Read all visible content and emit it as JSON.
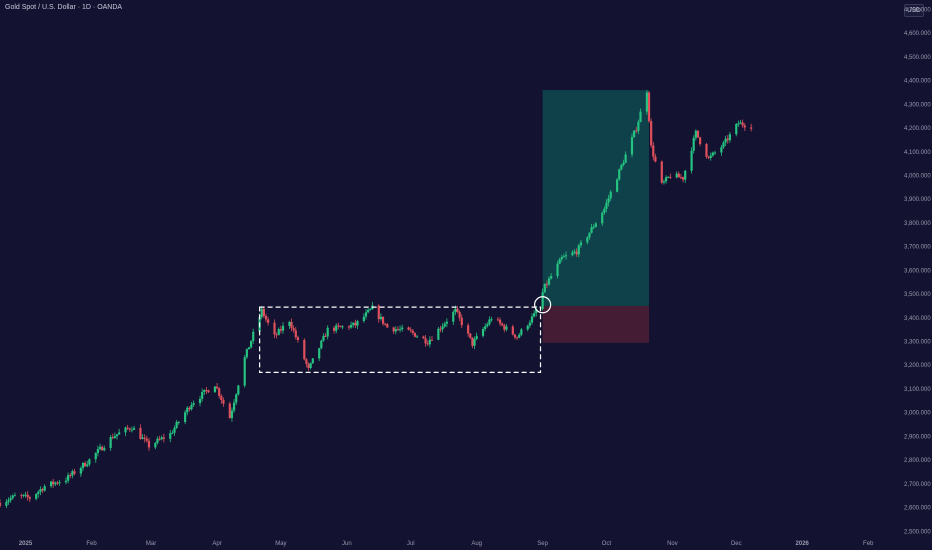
{
  "header": {
    "title": "Gold Spot / U.S. Dollar · 1D · OANDA",
    "currency": "USD"
  },
  "colors": {
    "background": "#131230",
    "up": "#26c281",
    "down": "#e0505c",
    "target_zone": "#0e4a4e",
    "stop_zone": "#4a1e34",
    "box_line": "#ffffff",
    "axis_text": "#9a9ab0"
  },
  "chart_data": {
    "type": "candlestick",
    "title": "Gold Spot / U.S. Dollar · 1D · OANDA",
    "x_ticks": [
      "2025",
      "Feb",
      "Mar",
      "Apr",
      "May",
      "Jun",
      "Jul",
      "Aug",
      "Sep",
      "Oct",
      "Nov",
      "Dec",
      "2026",
      "Feb"
    ],
    "y_ticks": [
      "2,500.000",
      "2,600.000",
      "2,700.000",
      "2,800.000",
      "2,900.000",
      "3,000.000",
      "3,100.000",
      "3,200.000",
      "3,300.000",
      "3,400.000",
      "3,500.000",
      "3,600.000",
      "3,700.000",
      "3,800.000",
      "3,900.000",
      "4,000.000",
      "4,100.000",
      "4,200.000",
      "4,300.000",
      "4,400.000",
      "4,500.000",
      "4,600.000",
      "4,700.000"
    ],
    "ylim": [
      2480,
      4740
    ],
    "xlim": [
      "2024-12-20",
      "2026-02-15"
    ],
    "price_path": [
      [
        "2024-12-20",
        2620
      ],
      [
        "2024-12-28",
        2650
      ],
      [
        "2025-01-03",
        2640
      ],
      [
        "2025-01-10",
        2690
      ],
      [
        "2025-01-20",
        2720
      ],
      [
        "2025-01-31",
        2800
      ],
      [
        "2025-02-11",
        2900
      ],
      [
        "2025-02-20",
        2940
      ],
      [
        "2025-02-28",
        2860
      ],
      [
        "2025-03-10",
        2910
      ],
      [
        "2025-03-20",
        3040
      ],
      [
        "2025-03-31",
        3120
      ],
      [
        "2025-04-07",
        2980
      ],
      [
        "2025-04-14",
        3230
      ],
      [
        "2025-04-22",
        3430
      ],
      [
        "2025-04-28",
        3320
      ],
      [
        "2025-05-05",
        3390
      ],
      [
        "2025-05-14",
        3180
      ],
      [
        "2025-05-23",
        3350
      ],
      [
        "2025-06-05",
        3370
      ],
      [
        "2025-06-13",
        3440
      ],
      [
        "2025-06-20",
        3360
      ],
      [
        "2025-07-01",
        3340
      ],
      [
        "2025-07-09",
        3300
      ],
      [
        "2025-07-22",
        3430
      ],
      [
        "2025-07-30",
        3290
      ],
      [
        "2025-08-08",
        3400
      ],
      [
        "2025-08-20",
        3320
      ],
      [
        "2025-08-28",
        3410
      ],
      [
        "2025-09-02",
        3530
      ],
      [
        "2025-09-10",
        3650
      ],
      [
        "2025-09-17",
        3680
      ],
      [
        "2025-09-23",
        3760
      ],
      [
        "2025-09-30",
        3860
      ],
      [
        "2025-10-08",
        4040
      ],
      [
        "2025-10-15",
        4200
      ],
      [
        "2025-10-20",
        4360
      ],
      [
        "2025-10-22",
        4120
      ],
      [
        "2025-10-27",
        3960
      ],
      [
        "2025-10-31",
        4000
      ],
      [
        "2025-11-06",
        3990
      ],
      [
        "2025-11-12",
        4180
      ],
      [
        "2025-11-18",
        4070
      ],
      [
        "2025-11-25",
        4130
      ],
      [
        "2025-12-02",
        4220
      ],
      [
        "2025-12-08",
        4210
      ]
    ],
    "annotations": {
      "consolidation_box": {
        "x_start": "2025-04-21",
        "x_end": "2025-08-31",
        "y_low": 3170,
        "y_high": 3445,
        "style": "dashed"
      },
      "breakout_circle": {
        "x": "2025-09-01",
        "y": 3455
      },
      "target_zone": {
        "x_start": "2025-09-01",
        "x_end": "2025-10-21",
        "y_low": 3450,
        "y_high": 4360
      },
      "stop_zone": {
        "x_start": "2025-09-01",
        "x_end": "2025-10-21",
        "y_low": 3295,
        "y_high": 3450
      }
    }
  }
}
